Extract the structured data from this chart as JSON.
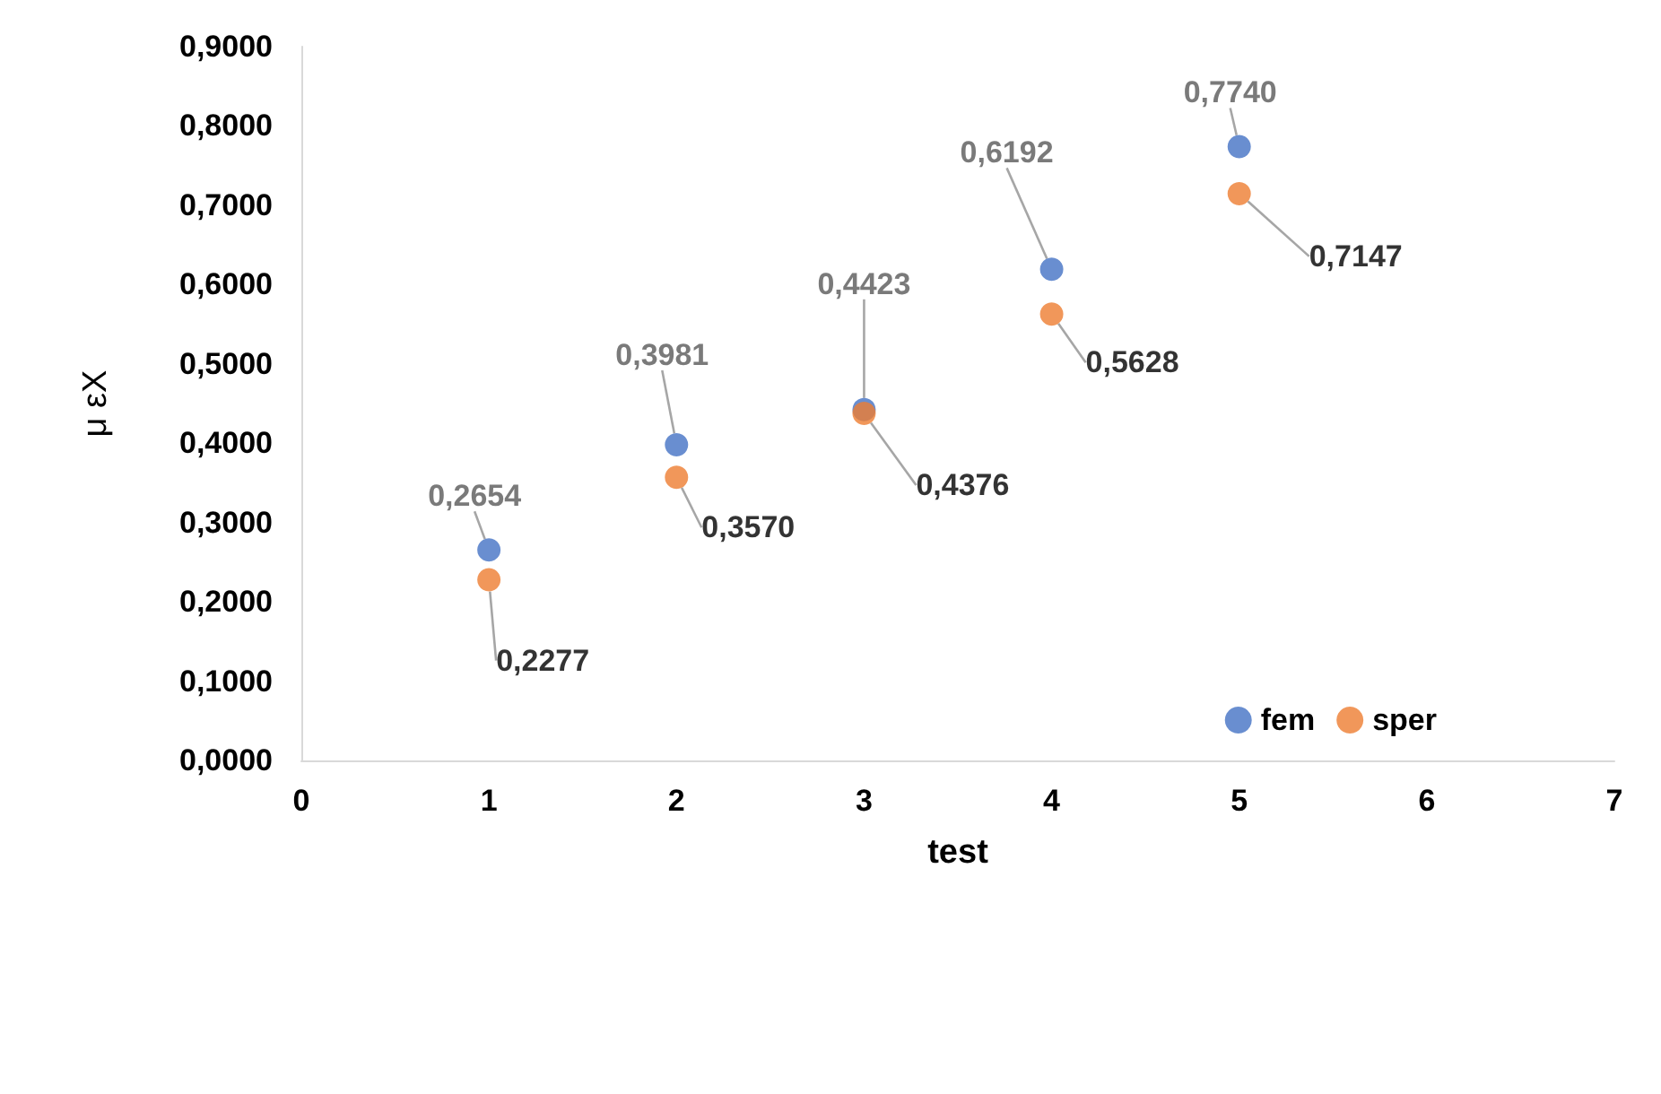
{
  "chart_data": {
    "type": "scatter",
    "xlabel": "test",
    "ylabel": "μ εX",
    "series": [
      {
        "name": "fem",
        "color": "#4472c4",
        "x": [
          1,
          2,
          3,
          4,
          5
        ],
        "values": [
          0.2654,
          0.3981,
          0.4423,
          0.6192,
          0.774
        ],
        "value_labels": [
          "0,2654",
          "0,3981",
          "0,4423",
          "0,6192",
          "0,7740"
        ]
      },
      {
        "name": "sper",
        "color": "#ed7d31",
        "x": [
          1,
          2,
          3,
          4,
          5
        ],
        "values": [
          0.2277,
          0.357,
          0.4376,
          0.5628,
          0.7147
        ],
        "value_labels": [
          "0,2277",
          "0,3570",
          "0,4376",
          "0,5628",
          "0,7147"
        ]
      }
    ],
    "xlim": [
      0,
      7
    ],
    "xticks": [
      0,
      1,
      2,
      3,
      4,
      5,
      6,
      7
    ],
    "ylim": [
      0,
      0.9
    ],
    "yticks": [
      {
        "value": 0,
        "label": "0,0000"
      },
      {
        "value": 0.1,
        "label": "0,1000"
      },
      {
        "value": 0.2,
        "label": "0,2000"
      },
      {
        "value": 0.3,
        "label": "0,3000"
      },
      {
        "value": 0.4,
        "label": "0,4000"
      },
      {
        "value": 0.5,
        "label": "0,5000"
      },
      {
        "value": 0.6,
        "label": "0,6000"
      },
      {
        "value": 0.7,
        "label": "0,7000"
      },
      {
        "value": 0.8,
        "label": "0,8000"
      },
      {
        "value": 0.9,
        "label": "0,9000"
      }
    ],
    "marker": "circle",
    "grid": false,
    "legend": "bottom right"
  }
}
